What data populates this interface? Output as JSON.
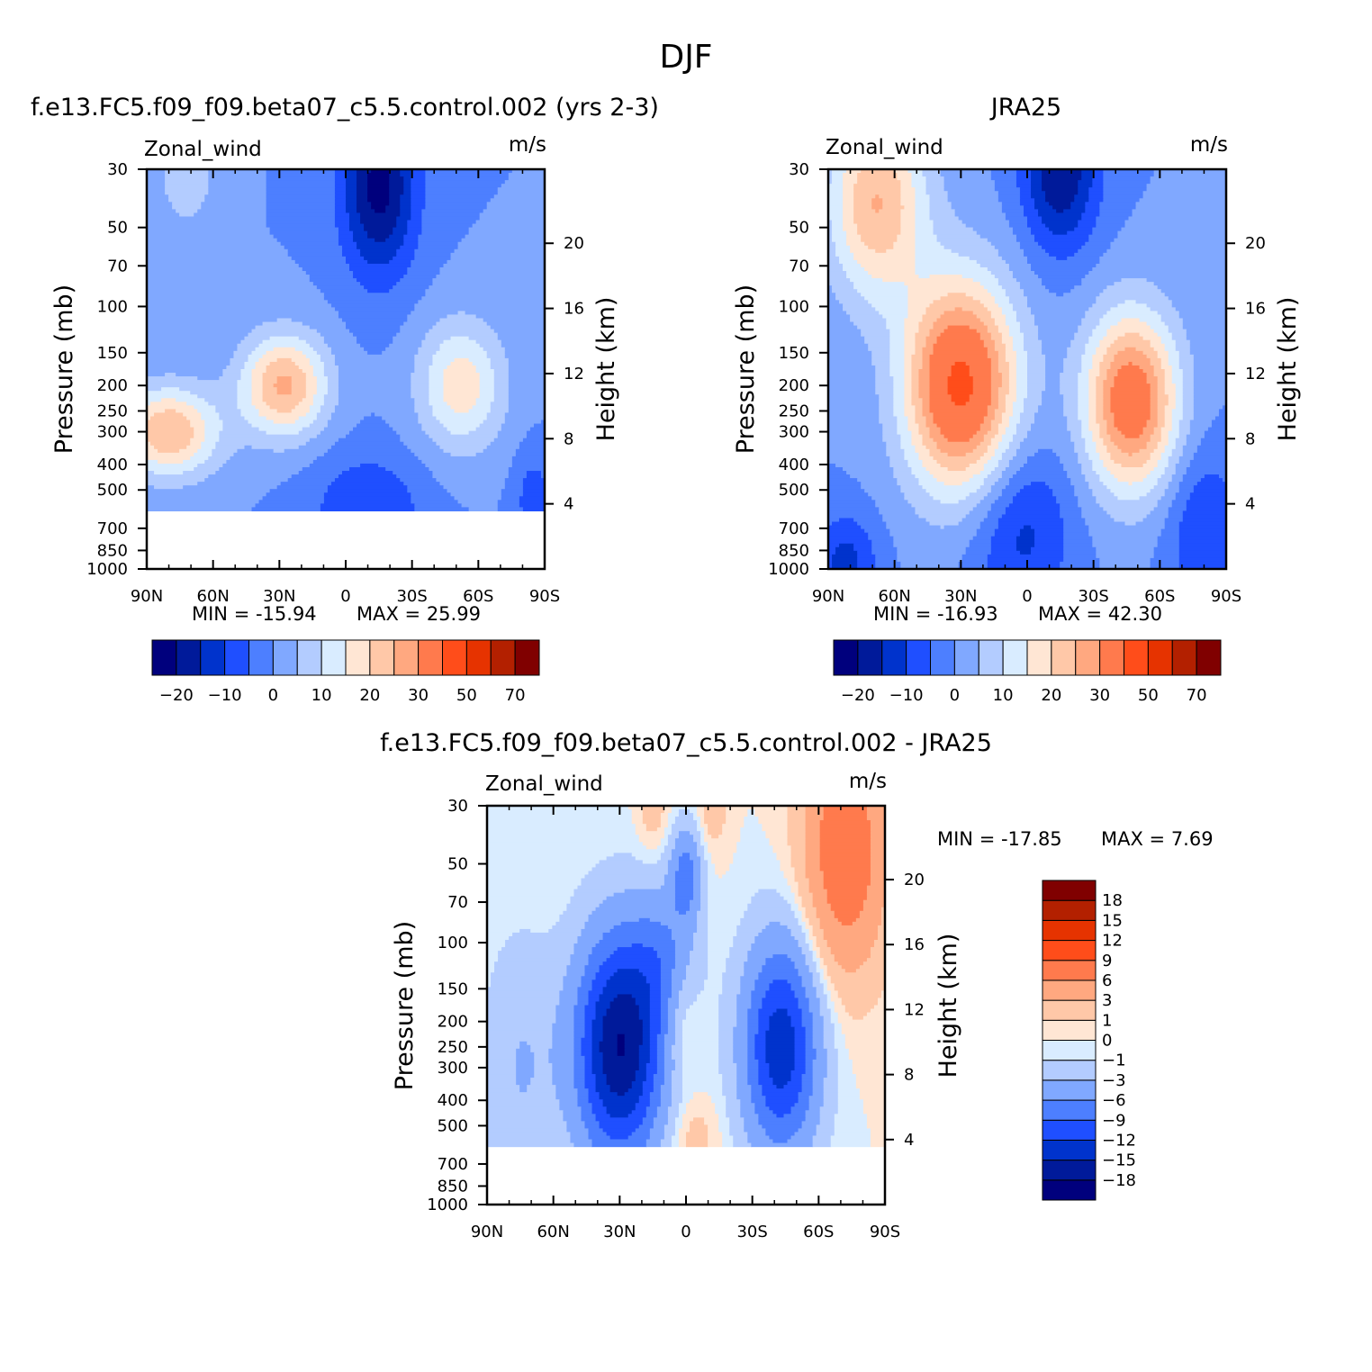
{
  "figure": {
    "main_title": "DJF"
  },
  "colors": {
    "full_palette": [
      "#00007d",
      "#001a9a",
      "#0033cc",
      "#1f4fff",
      "#4d7fff",
      "#80a8ff",
      "#b3ccff",
      "#d9ecff",
      "#ffe6d4",
      "#ffc8a8",
      "#ffa880",
      "#ff7a4d",
      "#ff4d1a",
      "#e63300",
      "#b32000",
      "#800000"
    ],
    "diff_palette": [
      "#00007d",
      "#001a9a",
      "#0033cc",
      "#1f4fff",
      "#4d7fff",
      "#80a8ff",
      "#b3ccff",
      "#d9ecff",
      "#ffe6d4",
      "#ffc8a8",
      "#ffa880",
      "#ff7a4d",
      "#ff4d1a",
      "#e63300",
      "#b32000",
      "#800000"
    ]
  },
  "chart_data": [
    {
      "id": "model",
      "type": "heatmap",
      "title": "f.e13.FC5.f09_f09.beta07_c5.5.control.002 (yrs 2-3)",
      "variable": "Zonal_wind",
      "units": "m/s",
      "ylabel": "Pressure (mb)",
      "ylabel_right": "Height (km)",
      "x_ticks": [
        "90N",
        "60N",
        "30N",
        "0",
        "30S",
        "60S",
        "90S"
      ],
      "y_ticks": [
        "30",
        "50",
        "70",
        "100",
        "150",
        "200",
        "250",
        "300",
        "400",
        "500",
        "700",
        "850",
        "1000"
      ],
      "height_ticks": [
        "20",
        "16",
        "12",
        "8",
        "4"
      ],
      "ylim": [
        1000,
        30
      ],
      "min_label": "MIN = -15.94",
      "max_label": "MAX = 25.99",
      "min": -15.94,
      "max": 25.99,
      "missing_below_mb": 600,
      "colorbar_labels": [
        "-20",
        "-10",
        "0",
        "10",
        "20",
        "30",
        "50",
        "70"
      ],
      "field": [
        {
          "lat": 80,
          "p": 300,
          "u": 25,
          "sx": 16,
          "sp": 0.28
        },
        {
          "lat": 28,
          "p": 200,
          "u": 26,
          "sx": 14,
          "sp": 0.32
        },
        {
          "lat": -52,
          "p": 200,
          "u": 18,
          "sx": 14,
          "sp": 0.4
        },
        {
          "lat": 72,
          "p": 30,
          "u": 10,
          "sx": 9,
          "sp": 0.35
        },
        {
          "lat": -15,
          "p": 35,
          "u": -22,
          "sx": 12,
          "sp": 0.55
        },
        {
          "lat": -10,
          "p": 600,
          "u": -10,
          "sx": 18,
          "sp": 0.35
        },
        {
          "lat": -85,
          "p": 550,
          "u": -8,
          "sx": 6,
          "sp": 0.3
        }
      ]
    },
    {
      "id": "obs",
      "type": "heatmap",
      "title": "JRA25",
      "variable": "Zonal_wind",
      "units": "m/s",
      "ylabel": "Pressure (mb)",
      "ylabel_right": "Height (km)",
      "x_ticks": [
        "90N",
        "60N",
        "30N",
        "0",
        "30S",
        "60S",
        "90S"
      ],
      "y_ticks": [
        "30",
        "50",
        "70",
        "100",
        "150",
        "200",
        "250",
        "300",
        "400",
        "500",
        "700",
        "850",
        "1000"
      ],
      "height_ticks": [
        "20",
        "16",
        "12",
        "8",
        "4"
      ],
      "ylim": [
        1000,
        30
      ],
      "min_label": "MIN = -16.93",
      "max_label": "MAX = 42.30",
      "min": -16.93,
      "max": 42.3,
      "missing_below_mb": 1000,
      "colorbar_labels": [
        "-20",
        "-10",
        "0",
        "10",
        "20",
        "30",
        "50",
        "70"
      ],
      "field": [
        {
          "lat": 30,
          "p": 200,
          "u": 42,
          "sx": 18,
          "sp": 0.65
        },
        {
          "lat": 68,
          "p": 40,
          "u": 25,
          "sx": 16,
          "sp": 0.6
        },
        {
          "lat": -47,
          "p": 230,
          "u": 36,
          "sx": 15,
          "sp": 0.55
        },
        {
          "lat": -15,
          "p": 30,
          "u": -20,
          "sx": 12,
          "sp": 0.5
        },
        {
          "lat": 3,
          "p": 700,
          "u": -12,
          "sx": 16,
          "sp": 0.55
        },
        {
          "lat": 82,
          "p": 950,
          "u": -12,
          "sx": 10,
          "sp": 0.3
        },
        {
          "lat": -80,
          "p": 700,
          "u": -10,
          "sx": 12,
          "sp": 0.5
        }
      ]
    },
    {
      "id": "diff",
      "type": "heatmap",
      "title": "f.e13.FC5.f09_f09.beta07_c5.5.control.002 - JRA25",
      "variable": "Zonal_wind",
      "units": "m/s",
      "ylabel": "Pressure (mb)",
      "ylabel_right": "Height (km)",
      "x_ticks": [
        "90N",
        "60N",
        "30N",
        "0",
        "30S",
        "60S",
        "90S"
      ],
      "y_ticks": [
        "30",
        "50",
        "70",
        "100",
        "150",
        "200",
        "250",
        "300",
        "400",
        "500",
        "700",
        "850",
        "1000"
      ],
      "height_ticks": [
        "20",
        "16",
        "12",
        "8",
        "4"
      ],
      "ylim": [
        1000,
        30
      ],
      "min_label": "MIN = -17.85",
      "max_label": "MAX = 7.69",
      "min": -17.85,
      "max": 7.69,
      "missing_below_mb": 600,
      "colorbar_labels": [
        "18",
        "15",
        "12",
        "9",
        "6",
        "3",
        "1",
        "0",
        "-1",
        "-3",
        "-6",
        "-9",
        "-12",
        "-15",
        "-18"
      ],
      "field": [
        {
          "lat": 30,
          "p": 250,
          "u": -18,
          "sx": 14,
          "sp": 0.7
        },
        {
          "lat": -43,
          "p": 250,
          "u": -14,
          "sx": 12,
          "sp": 0.65
        },
        {
          "lat": -72,
          "p": 45,
          "u": 9,
          "sx": 13,
          "sp": 0.75
        },
        {
          "lat": 3,
          "p": 200,
          "u": 3,
          "sx": 6,
          "sp": 0.35
        },
        {
          "lat": 15,
          "p": 30,
          "u": 2,
          "sx": 5,
          "sp": 0.3
        },
        {
          "lat": -12,
          "p": 30,
          "u": 2,
          "sx": 5,
          "sp": 0.3
        },
        {
          "lat": 0,
          "p": 55,
          "u": -7,
          "sx": 5,
          "sp": 0.3
        },
        {
          "lat": 10,
          "p": 120,
          "u": -5,
          "sx": 10,
          "sp": 0.45
        },
        {
          "lat": 75,
          "p": 300,
          "u": -3,
          "sx": 12,
          "sp": 0.8
        },
        {
          "lat": -3,
          "p": 550,
          "u": 2,
          "sx": 8,
          "sp": 0.25
        }
      ]
    }
  ]
}
